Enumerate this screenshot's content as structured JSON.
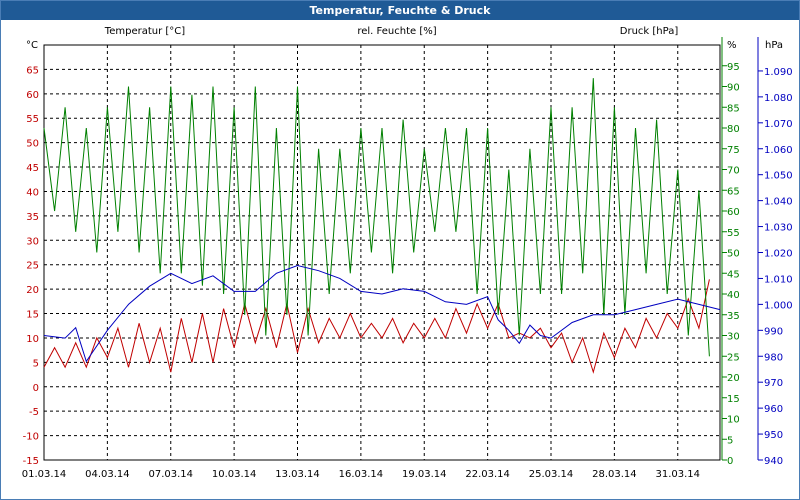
{
  "window": {
    "title": "Temperatur, Feuchte & Druck"
  },
  "colors": {
    "temperature": "#c00000",
    "humidity": "#008000",
    "pressure": "#0000c0",
    "grid": "#000000"
  },
  "chart_data": {
    "type": "line",
    "title": "Temperatur, Feuchte & Druck",
    "grid": true,
    "x": {
      "range": [
        "01.03.14",
        "02.04.14"
      ],
      "ticks": [
        "01.03.14",
        "04.03.14",
        "07.03.14",
        "10.03.14",
        "13.03.14",
        "16.03.14",
        "19.03.14",
        "22.03.14",
        "25.03.14",
        "28.03.14",
        "31.03.14"
      ]
    },
    "axes": {
      "temperature": {
        "label": "Temperatur [°C]",
        "unit": "°C",
        "range": [
          -15,
          70
        ],
        "ticks": [
          -15,
          -10,
          -5,
          0,
          5,
          10,
          15,
          20,
          25,
          30,
          35,
          40,
          45,
          50,
          55,
          60,
          65
        ]
      },
      "humidity": {
        "label": "rel. Feuchte [%]",
        "unit": "%",
        "range": [
          0,
          100
        ],
        "ticks": [
          0,
          5,
          10,
          15,
          20,
          25,
          30,
          35,
          40,
          45,
          50,
          55,
          60,
          65,
          70,
          75,
          80,
          85,
          90,
          95
        ]
      },
      "pressure": {
        "label": "Druck [hPa]",
        "unit": "hPa",
        "range": [
          940,
          1100
        ],
        "ticks": [
          "940",
          "950",
          "960",
          "970",
          "980",
          "990",
          "1.000",
          "1.010",
          "1.020",
          "1.030",
          "1.040",
          "1.050",
          "1.060",
          "1.070",
          "1.080",
          "1.090"
        ]
      }
    },
    "series": [
      {
        "name": "Temperatur [°C]",
        "axis": "temperature",
        "day": [
          0,
          0.5,
          1,
          1.5,
          2,
          2.5,
          3,
          3.5,
          4,
          4.5,
          5,
          5.5,
          6,
          6.5,
          7,
          7.5,
          8,
          8.5,
          9,
          9.5,
          10,
          10.5,
          11,
          11.5,
          12,
          12.5,
          13,
          13.5,
          14,
          14.5,
          15,
          15.5,
          16,
          16.5,
          17,
          17.5,
          18,
          18.5,
          19,
          19.5,
          20,
          20.5,
          21,
          21.5,
          22,
          22.5,
          23,
          23.5,
          24,
          24.5,
          25,
          25.5,
          26,
          26.5,
          27,
          27.5,
          28,
          28.5,
          29,
          29.5,
          30,
          30.5,
          31,
          31.5
        ],
        "values": [
          4,
          8,
          4,
          9,
          4,
          10,
          6,
          12,
          4,
          13,
          5,
          12,
          3,
          14,
          5,
          15,
          5,
          16,
          8,
          17,
          9,
          16,
          8,
          17,
          7,
          16,
          9,
          14,
          10,
          15,
          10,
          13,
          10,
          14,
          9,
          13,
          10,
          14,
          10,
          16,
          11,
          17,
          12,
          17,
          10,
          11,
          10,
          12,
          8,
          11,
          5,
          10,
          3,
          11,
          6,
          12,
          8,
          14,
          10,
          15,
          12,
          18,
          12,
          22
        ]
      },
      {
        "name": "rel. Feuchte [%]",
        "axis": "humidity",
        "day": [
          0,
          0.5,
          1,
          1.5,
          2,
          2.5,
          3,
          3.5,
          4,
          4.5,
          5,
          5.5,
          6,
          6.5,
          7,
          7.5,
          8,
          8.5,
          9,
          9.5,
          10,
          10.5,
          11,
          11.5,
          12,
          12.5,
          13,
          13.5,
          14,
          14.5,
          15,
          15.5,
          16,
          16.5,
          17,
          17.5,
          18,
          18.5,
          19,
          19.5,
          20,
          20.5,
          21,
          21.5,
          22,
          22.5,
          23,
          23.5,
          24,
          24.5,
          25,
          25.5,
          26,
          26.5,
          27,
          27.5,
          28,
          28.5,
          29,
          29.5,
          30,
          30.5,
          31,
          31.5
        ],
        "values": [
          80,
          60,
          85,
          55,
          80,
          50,
          85,
          55,
          90,
          50,
          85,
          45,
          90,
          45,
          88,
          42,
          90,
          40,
          85,
          35,
          90,
          30,
          80,
          35,
          90,
          30,
          75,
          40,
          75,
          45,
          80,
          50,
          80,
          45,
          82,
          50,
          75,
          55,
          80,
          55,
          80,
          40,
          80,
          35,
          70,
          30,
          75,
          40,
          85,
          40,
          85,
          45,
          92,
          35,
          85,
          35,
          80,
          45,
          82,
          40,
          70,
          30,
          65,
          25
        ]
      },
      {
        "name": "Druck [hPa]",
        "axis": "pressure",
        "day": [
          0,
          1,
          1.5,
          2,
          3,
          4,
          5,
          6,
          7,
          8,
          9,
          10,
          11,
          12,
          13,
          14,
          15,
          16,
          17,
          18,
          19,
          20,
          21,
          21.5,
          22,
          22.5,
          23,
          23.5,
          24,
          25,
          26,
          27,
          28,
          29,
          30,
          31,
          32
        ],
        "values": [
          988,
          987,
          991,
          978,
          990,
          1000,
          1007,
          1012,
          1008,
          1011,
          1005,
          1005,
          1012,
          1015,
          1013,
          1010,
          1005,
          1004,
          1006,
          1005,
          1001,
          1000,
          1003,
          994,
          990,
          985,
          992,
          988,
          987,
          993,
          996,
          996,
          998,
          1000,
          1002,
          1000,
          998
        ]
      }
    ]
  }
}
